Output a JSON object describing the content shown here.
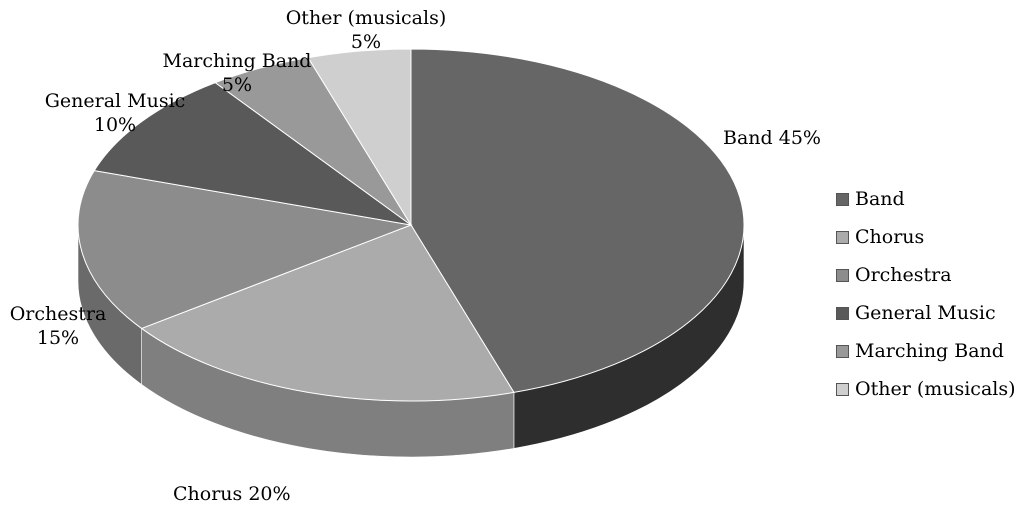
{
  "chart_data": {
    "type": "pie",
    "style": "3d",
    "categories": [
      "Band",
      "Chorus",
      "Orchestra",
      "General Music",
      "Marching Band",
      "Other (musicals)"
    ],
    "values": [
      45,
      20,
      15,
      10,
      5,
      5
    ],
    "unit": "%",
    "data_labels": [
      {
        "name": "Band",
        "value": "45%"
      },
      {
        "name": "Chorus",
        "value": "20%"
      },
      {
        "name": "Orchestra",
        "value": "15%"
      },
      {
        "name": "General Music",
        "value": "10%"
      },
      {
        "name": "Marching Band",
        "value": "5%"
      },
      {
        "name": "Other (musicals)",
        "value": "5%"
      }
    ],
    "legend": {
      "position": "right",
      "items": [
        {
          "label": "Band",
          "color": "#666666"
        },
        {
          "label": "Chorus",
          "color": "#ababab"
        },
        {
          "label": "Orchestra",
          "color": "#8c8c8c"
        },
        {
          "label": "General Music",
          "color": "#595959"
        },
        {
          "label": "Marching Band",
          "color": "#999999"
        },
        {
          "label": "Other (musicals)",
          "color": "#cfcfcf"
        }
      ]
    },
    "colors": [
      "#666666",
      "#ababab",
      "#8c8c8c",
      "#595959",
      "#999999",
      "#cfcfcf"
    ],
    "side_colors": [
      "#2e2e2e",
      "#7f7f7f",
      "#6a6a6a",
      "#3a3a3a",
      "#727272",
      "#9c9c9c"
    ]
  }
}
